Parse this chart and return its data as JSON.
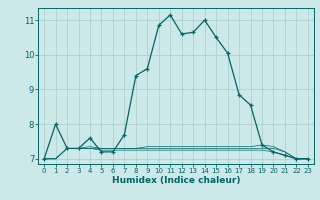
{
  "title": "",
  "xlabel": "Humidex (Indice chaleur)",
  "bg_color": "#cce8e8",
  "grid_color": "#aacccc",
  "line_color": "#006666",
  "xlim": [
    -0.5,
    23.5
  ],
  "ylim": [
    6.85,
    11.35
  ],
  "yticks": [
    7,
    8,
    9,
    10,
    11
  ],
  "xticks": [
    0,
    1,
    2,
    3,
    4,
    5,
    6,
    7,
    8,
    9,
    10,
    11,
    12,
    13,
    14,
    15,
    16,
    17,
    18,
    19,
    20,
    21,
    22,
    23
  ],
  "series": [
    [
      0,
      7.0
    ],
    [
      1,
      8.0
    ],
    [
      2,
      7.3
    ],
    [
      3,
      7.3
    ],
    [
      4,
      7.6
    ],
    [
      5,
      7.2
    ],
    [
      6,
      7.2
    ],
    [
      7,
      7.7
    ],
    [
      8,
      9.4
    ],
    [
      9,
      9.6
    ],
    [
      10,
      10.85
    ],
    [
      11,
      11.15
    ],
    [
      12,
      10.6
    ],
    [
      13,
      10.65
    ],
    [
      14,
      11.0
    ],
    [
      15,
      10.5
    ],
    [
      16,
      10.05
    ],
    [
      17,
      8.85
    ],
    [
      18,
      8.55
    ],
    [
      19,
      7.4
    ],
    [
      20,
      7.2
    ],
    [
      21,
      7.1
    ],
    [
      22,
      7.0
    ],
    [
      23,
      7.0
    ]
  ],
  "flat_series": [
    [
      0,
      7.0
    ],
    [
      1,
      7.0
    ],
    [
      2,
      7.3
    ],
    [
      3,
      7.3
    ],
    [
      4,
      7.3
    ],
    [
      5,
      7.25
    ],
    [
      6,
      7.25
    ],
    [
      7,
      7.25
    ],
    [
      8,
      7.25
    ],
    [
      9,
      7.25
    ],
    [
      10,
      7.25
    ],
    [
      11,
      7.25
    ],
    [
      12,
      7.25
    ],
    [
      13,
      7.25
    ],
    [
      14,
      7.25
    ],
    [
      15,
      7.25
    ],
    [
      16,
      7.25
    ],
    [
      17,
      7.25
    ],
    [
      18,
      7.25
    ],
    [
      19,
      7.25
    ],
    [
      20,
      7.2
    ],
    [
      21,
      7.1
    ],
    [
      22,
      7.0
    ],
    [
      23,
      7.0
    ]
  ],
  "flat_series2": [
    [
      0,
      7.0
    ],
    [
      1,
      7.0
    ],
    [
      2,
      7.3
    ],
    [
      3,
      7.3
    ],
    [
      4,
      7.35
    ],
    [
      5,
      7.3
    ],
    [
      6,
      7.3
    ],
    [
      7,
      7.3
    ],
    [
      8,
      7.3
    ],
    [
      9,
      7.3
    ],
    [
      10,
      7.3
    ],
    [
      11,
      7.3
    ],
    [
      12,
      7.3
    ],
    [
      13,
      7.3
    ],
    [
      14,
      7.3
    ],
    [
      15,
      7.3
    ],
    [
      16,
      7.3
    ],
    [
      17,
      7.3
    ],
    [
      18,
      7.3
    ],
    [
      19,
      7.3
    ],
    [
      20,
      7.3
    ],
    [
      21,
      7.2
    ],
    [
      22,
      7.0
    ],
    [
      23,
      7.0
    ]
  ],
  "flat_series3": [
    [
      0,
      7.0
    ],
    [
      1,
      7.0
    ],
    [
      2,
      7.3
    ],
    [
      3,
      7.3
    ],
    [
      4,
      7.3
    ],
    [
      5,
      7.3
    ],
    [
      6,
      7.3
    ],
    [
      7,
      7.3
    ],
    [
      8,
      7.3
    ],
    [
      9,
      7.35
    ],
    [
      10,
      7.35
    ],
    [
      11,
      7.35
    ],
    [
      12,
      7.35
    ],
    [
      13,
      7.35
    ],
    [
      14,
      7.35
    ],
    [
      15,
      7.35
    ],
    [
      16,
      7.35
    ],
    [
      17,
      7.35
    ],
    [
      18,
      7.35
    ],
    [
      19,
      7.4
    ],
    [
      20,
      7.35
    ],
    [
      21,
      7.2
    ],
    [
      22,
      7.0
    ],
    [
      23,
      7.0
    ]
  ]
}
